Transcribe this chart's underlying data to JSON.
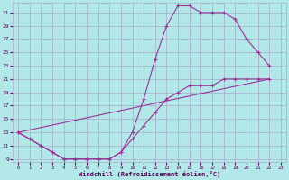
{
  "xlabel": "Windchill (Refroidissement éolien,°C)",
  "bg_color": "#b2e8e8",
  "grid_color": "#aaaacc",
  "line_color": "#993399",
  "xlim": [
    -0.5,
    23.5
  ],
  "ylim": [
    8.5,
    32.5
  ],
  "xticks": [
    0,
    1,
    2,
    3,
    4,
    5,
    6,
    7,
    8,
    9,
    10,
    11,
    12,
    13,
    14,
    15,
    16,
    17,
    18,
    19,
    20,
    21,
    22,
    23
  ],
  "yticks": [
    9,
    11,
    13,
    15,
    17,
    19,
    21,
    23,
    25,
    27,
    29,
    31
  ],
  "curve1_x": [
    0,
    1,
    2,
    3,
    4,
    5,
    6,
    7,
    8,
    9,
    10,
    11,
    12,
    13,
    14,
    15,
    16,
    17,
    18,
    19,
    20,
    21,
    22
  ],
  "curve1_y": [
    13,
    12,
    11,
    10,
    9,
    9,
    9,
    9,
    9,
    10,
    13,
    18,
    24,
    29,
    32,
    32,
    31,
    31,
    31,
    30,
    27,
    25,
    23
  ],
  "curve2_x": [
    0,
    1,
    2,
    3,
    4,
    5,
    6,
    7,
    8,
    9,
    10,
    11,
    12,
    13,
    14,
    15,
    16,
    17,
    18,
    19,
    20,
    21,
    22
  ],
  "curve2_y": [
    13,
    12,
    11,
    10,
    9,
    9,
    9,
    9,
    9,
    10,
    12,
    14,
    16,
    18,
    19,
    20,
    20,
    20,
    21,
    21,
    21,
    21,
    21
  ],
  "curve3_x": [
    0,
    22
  ],
  "curve3_y": [
    13,
    21
  ]
}
